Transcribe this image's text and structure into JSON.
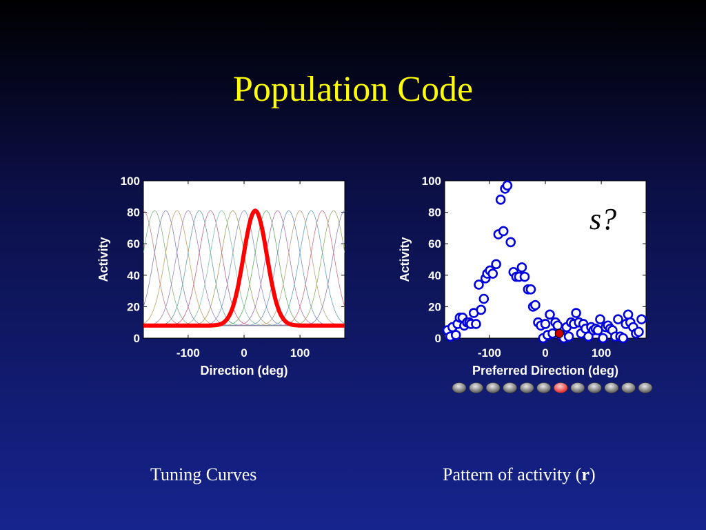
{
  "slide": {
    "title": "Population Code",
    "caption_left": "Tuning Curves",
    "caption_right_prefix": "Pattern of activity (",
    "caption_right_bold": "r",
    "caption_right_suffix": ")"
  },
  "colors": {
    "title": "#ffff00",
    "highlight": "#ff0000",
    "markers": "#0000dd",
    "active_neuron": "#cc0000"
  },
  "chart_data": [
    {
      "type": "line",
      "xlabel": "Direction (deg)",
      "ylabel": "Activity",
      "xlim": [
        -180,
        180
      ],
      "ylim": [
        0,
        100
      ],
      "xticks": [
        -100,
        0,
        100
      ],
      "yticks": [
        0,
        20,
        40,
        60,
        80,
        100
      ],
      "tuning": {
        "baseline": 8,
        "peak": 81,
        "width_deg": 21
      },
      "thin_curve_centers": [
        -180,
        -160,
        -140,
        -120,
        -100,
        -80,
        -60,
        -40,
        -20,
        0,
        20,
        40,
        60,
        80,
        100,
        120,
        140,
        160,
        180
      ],
      "highlight_center": 20,
      "thin_curve_colors": [
        "#c08080",
        "#80b080",
        "#8080c0",
        "#c0a060",
        "#a080c0",
        "#60a0a0",
        "#c06080",
        "#80c0a0",
        "#a0a060",
        "#8090d0",
        "#d08060",
        "#60b060",
        "#b070b0",
        "#7090c0",
        "#c0a080",
        "#60a0c0",
        "#d07080",
        "#90b060",
        "#8080c0"
      ]
    },
    {
      "type": "scatter",
      "xlabel": "Preferred Direction (deg)",
      "ylabel": "Activity",
      "xlim": [
        -180,
        180
      ],
      "ylim": [
        0,
        100
      ],
      "xticks": [
        -100,
        0,
        100
      ],
      "yticks": [
        0,
        20,
        40,
        60,
        80,
        100
      ],
      "annotation": "s?",
      "x": [
        -175,
        -170,
        -166,
        -160,
        -157,
        -153,
        -148,
        -145,
        -140,
        -136,
        -133,
        -128,
        -124,
        -119,
        -115,
        -110,
        -107,
        -104,
        -99,
        -94,
        -88,
        -84,
        -80,
        -75,
        -72,
        -68,
        -62,
        -57,
        -52,
        -47,
        -42,
        -37,
        -31,
        -26,
        -22,
        -18,
        -13,
        -8,
        -4,
        0,
        4,
        8,
        13,
        18,
        22,
        28,
        33,
        38,
        42,
        46,
        51,
        55,
        60,
        64,
        68,
        72,
        77,
        82,
        86,
        90,
        94,
        98,
        103,
        108,
        112,
        116,
        120,
        125,
        130,
        134,
        139,
        144,
        148,
        152,
        157,
        162,
        167,
        172
      ],
      "y": [
        5,
        1,
        7,
        2,
        9,
        13,
        13,
        8,
        10,
        10,
        9,
        16,
        9,
        34,
        18,
        25,
        38,
        41,
        43,
        41,
        47,
        66,
        88,
        68,
        95,
        97,
        61,
        42,
        39,
        39,
        45,
        39,
        31,
        31,
        20,
        21,
        10,
        8,
        0,
        9,
        2,
        15,
        3,
        10,
        8,
        2,
        0,
        7,
        1,
        10,
        9,
        16,
        10,
        3,
        9,
        6,
        1,
        7,
        5,
        6,
        5,
        12,
        0,
        7,
        8,
        6,
        5,
        1,
        12,
        1,
        0,
        9,
        15,
        10,
        7,
        3,
        4,
        12
      ],
      "highlight_point": {
        "x": 25,
        "y": 3
      },
      "neuron_marker_count": 12,
      "active_neuron_index": 6
    }
  ]
}
